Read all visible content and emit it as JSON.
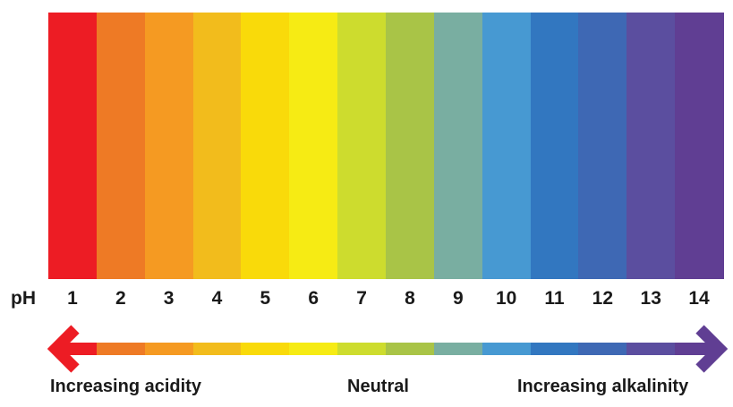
{
  "scale": {
    "prefix": "pH",
    "values": [
      {
        "label": "1",
        "color": "#ED1C24"
      },
      {
        "label": "2",
        "color": "#EE7A25"
      },
      {
        "label": "3",
        "color": "#F59A22"
      },
      {
        "label": "4",
        "color": "#F2BC1C"
      },
      {
        "label": "5",
        "color": "#F9DA0A"
      },
      {
        "label": "6",
        "color": "#F6EB14"
      },
      {
        "label": "7",
        "color": "#CDDC2E"
      },
      {
        "label": "8",
        "color": "#A9C447"
      },
      {
        "label": "9",
        "color": "#79AEA1"
      },
      {
        "label": "10",
        "color": "#4799D2"
      },
      {
        "label": "11",
        "color": "#3277C0"
      },
      {
        "label": "12",
        "color": "#3E68B4"
      },
      {
        "label": "13",
        "color": "#5B4E9F"
      },
      {
        "label": "14",
        "color": "#603E93"
      }
    ]
  },
  "captions": {
    "left": "Increasing acidity",
    "center": "Neutral",
    "right": "Increasing alkalinity"
  }
}
